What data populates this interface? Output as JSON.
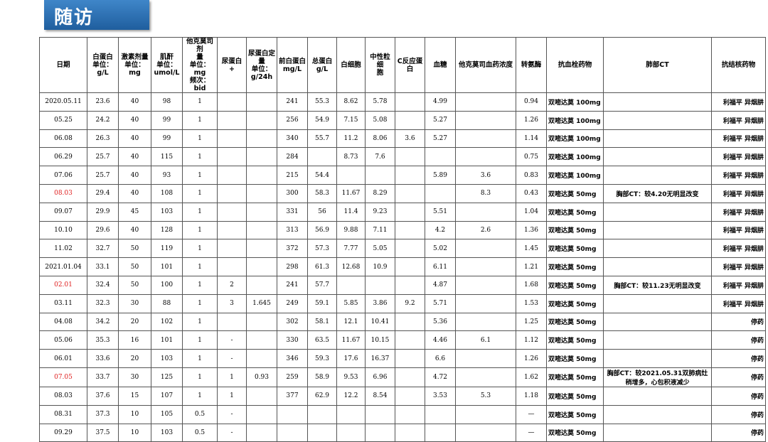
{
  "header": {
    "title": "随访"
  },
  "table": {
    "columns": [
      [
        "日期"
      ],
      [
        "白蛋白",
        "单位：",
        "g/L"
      ],
      [
        "激素剂量",
        "单位：mg"
      ],
      [
        "肌酐",
        "单位：",
        "umol/L"
      ],
      [
        "他克莫司剂",
        "量",
        "单位：mg",
        "频次：bid"
      ],
      [
        "尿蛋白",
        "+"
      ],
      [
        "尿蛋白定",
        "量",
        "单位：",
        "g/24h"
      ],
      [
        "前白蛋白",
        "mg/L"
      ],
      [
        "总蛋白",
        "g/L"
      ],
      [
        "白细胞"
      ],
      [
        "中性粒细",
        "胞"
      ],
      [
        "C反应蛋",
        "白"
      ],
      [
        "血糖"
      ],
      [
        "他克莫司血药浓度"
      ],
      [
        "转氨酶"
      ],
      [
        "抗血栓药物"
      ],
      [
        "肺部CT"
      ],
      [
        "抗结核药物"
      ]
    ],
    "highlight_rows": [
      5,
      10,
      15
    ],
    "highlight_color": "#e02020",
    "rows": [
      [
        "2020.05.11",
        "23.6",
        "40",
        "98",
        "1",
        null,
        null,
        "241",
        "55.3",
        "8.62",
        "5.78",
        null,
        "4.99",
        null,
        "0.94",
        "双嘧达莫 100mg",
        null,
        "利福平 异烟肼"
      ],
      [
        "05.25",
        "24.2",
        "40",
        "99",
        "1",
        null,
        null,
        "256",
        "54.9",
        "7.15",
        "5.08",
        null,
        "5.27",
        null,
        "1.26",
        "双嘧达莫 100mg",
        null,
        "利福平 异烟肼"
      ],
      [
        "06.08",
        "26.3",
        "40",
        "99",
        "1",
        null,
        null,
        "340",
        "55.7",
        "11.2",
        "8.06",
        "3.6",
        "5.27",
        null,
        "1.14",
        "双嘧达莫 100mg",
        null,
        "利福平 异烟肼"
      ],
      [
        "06.29",
        "25.7",
        "40",
        "115",
        "1",
        null,
        null,
        "284",
        null,
        "8.73",
        "7.6",
        null,
        null,
        null,
        "0.75",
        "双嘧达莫 100mg",
        null,
        "利福平 异烟肼"
      ],
      [
        "07.06",
        "25.7",
        "40",
        "93",
        "1",
        null,
        null,
        "215",
        "54.4",
        null,
        null,
        null,
        "5.89",
        "3.6",
        "0.83",
        "双嘧达莫 100mg",
        null,
        "利福平 异烟肼"
      ],
      [
        "08.03",
        "29.4",
        "40",
        "108",
        "1",
        null,
        null,
        "300",
        "58.3",
        "11.67",
        "8.29",
        null,
        null,
        "8.3",
        "0.43",
        "双嘧达莫 50mg",
        "胸部CT：较4.20无明显改变",
        "利福平 异烟肼"
      ],
      [
        "09.07",
        "29.9",
        "45",
        "103",
        "1",
        null,
        null,
        "331",
        "56",
        "11.4",
        "9.23",
        null,
        "5.51",
        null,
        "1.04",
        "双嘧达莫 50mg",
        null,
        "利福平 异烟肼"
      ],
      [
        "10.10",
        "29.6",
        "40",
        "128",
        "1",
        null,
        null,
        "313",
        "56.9",
        "9.88",
        "7.11",
        null,
        "4.2",
        "2.6",
        "1.36",
        "双嘧达莫 50mg",
        null,
        "利福平 异烟肼"
      ],
      [
        "11.02",
        "32.7",
        "50",
        "119",
        "1",
        null,
        null,
        "372",
        "57.3",
        "7.77",
        "5.05",
        null,
        "5.02",
        null,
        "1.45",
        "双嘧达莫 50mg",
        null,
        "利福平 异烟肼"
      ],
      [
        "2021.01.04",
        "33.1",
        "50",
        "101",
        "1",
        null,
        null,
        "298",
        "61.3",
        "12.68",
        "10.9",
        null,
        "6.11",
        null,
        "1.21",
        "双嘧达莫 50mg",
        null,
        "利福平 异烟肼"
      ],
      [
        "02.01",
        "32.4",
        "50",
        "100",
        "1",
        "2",
        null,
        "241",
        "57.7",
        null,
        null,
        null,
        "4.87",
        null,
        "1.68",
        "双嘧达莫 50mg",
        "胸部CT：较11.23无明显改变",
        "利福平 异烟肼"
      ],
      [
        "03.11",
        "32.3",
        "30",
        "88",
        "1",
        "3",
        "1.645",
        "249",
        "59.1",
        "5.85",
        "3.86",
        "9.2",
        "5.71",
        null,
        "1.53",
        "双嘧达莫 50mg",
        null,
        "利福平 异烟肼"
      ],
      [
        "04.08",
        "34.2",
        "20",
        "102",
        "1",
        null,
        null,
        "302",
        "58.1",
        "12.1",
        "10.41",
        null,
        "5.36",
        null,
        "1.25",
        "双嘧达莫 50mg",
        null,
        "停药"
      ],
      [
        "05.06",
        "35.3",
        "16",
        "101",
        "1",
        "-",
        null,
        "330",
        "63.5",
        "11.67",
        "10.15",
        null,
        "4.46",
        "6.1",
        "1.12",
        "双嘧达莫 50mg",
        null,
        "停药"
      ],
      [
        "06.01",
        "33.6",
        "20",
        "103",
        "1",
        "-",
        null,
        "346",
        "59.3",
        "17.6",
        "16.37",
        null,
        "6.6",
        null,
        "1.26",
        "双嘧达莫 50mg",
        null,
        "停药"
      ],
      [
        "07.05",
        "33.7",
        "30",
        "125",
        "1",
        "1",
        "0.93",
        "259",
        "58.9",
        "9.53",
        "6.96",
        null,
        "4.72",
        null,
        "1.62",
        "双嘧达莫 50mg",
        "胸部CT：较2021.05.31双肺病灶稍增多，心包积液减少",
        "停药"
      ],
      [
        "08.03",
        "37.6",
        "15",
        "107",
        "1",
        "1",
        null,
        "377",
        "62.9",
        "12.2",
        "8.54",
        null,
        "3.53",
        "5.3",
        "1.18",
        "双嘧达莫 50mg",
        null,
        "停药"
      ],
      [
        "08.31",
        "37.3",
        "10",
        "105",
        "0.5",
        "-",
        null,
        null,
        null,
        null,
        null,
        null,
        null,
        null,
        "—",
        "双嘧达莫 50mg",
        null,
        "停药"
      ],
      [
        "09.29",
        "37.5",
        "10",
        "103",
        "0.5",
        "-",
        null,
        null,
        null,
        null,
        null,
        null,
        null,
        null,
        "—",
        "双嘧达莫 50mg",
        null,
        "停药"
      ]
    ]
  }
}
